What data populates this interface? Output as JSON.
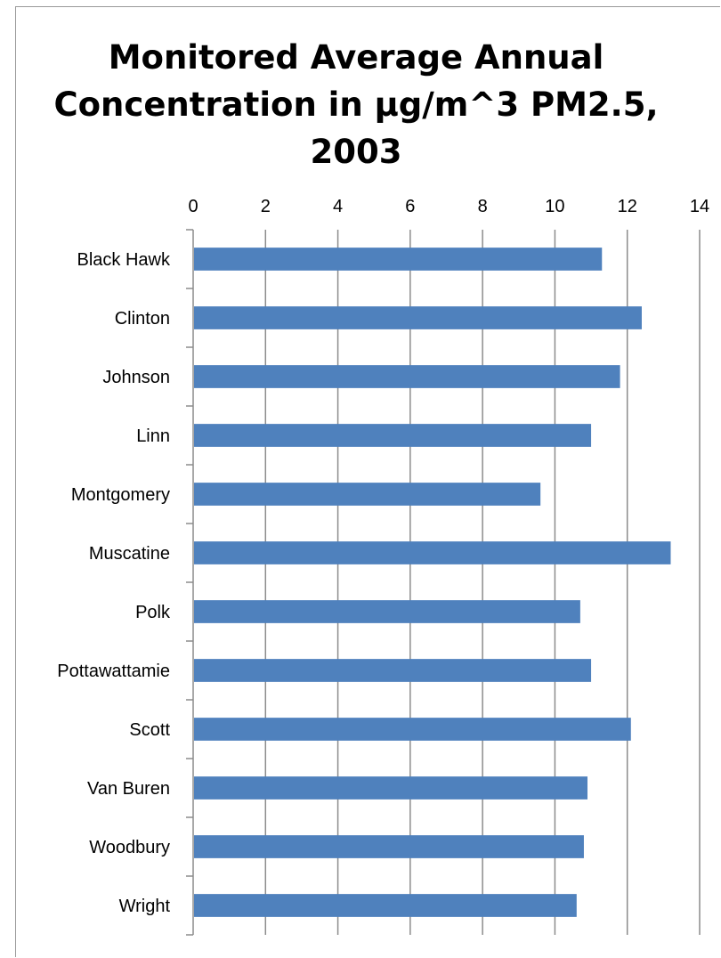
{
  "chart_data": {
    "type": "bar",
    "orientation": "horizontal",
    "title_lines": [
      "Monitored Average Annual",
      "Concentration in µg/m^3 PM2.5,",
      "2003"
    ],
    "xlabel": "",
    "ylabel": "",
    "xlim": [
      0,
      14
    ],
    "x_ticks": [
      0,
      2,
      4,
      6,
      8,
      10,
      12,
      14
    ],
    "x_axis_position": "top",
    "grid": "vertical",
    "legend": "none",
    "bar_color": "#4f81bd",
    "categories": [
      "Black Hawk",
      "Clinton",
      "Johnson",
      "Linn",
      "Montgomery",
      "Muscatine",
      "Polk",
      "Pottawattamie",
      "Scott",
      "Van Buren",
      "Woodbury",
      "Wright"
    ],
    "values": [
      11.3,
      12.4,
      11.8,
      11.0,
      9.6,
      13.2,
      10.7,
      11.0,
      12.1,
      10.9,
      10.8,
      10.6
    ]
  }
}
